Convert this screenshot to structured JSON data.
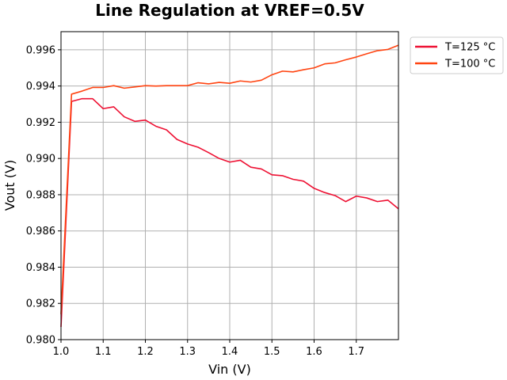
{
  "chart_data": {
    "type": "line",
    "title": "Line Regulation at VREF=0.5V",
    "xlabel": "Vin (V)",
    "ylabel": "Vout (V)",
    "xlim": [
      1.0,
      1.8
    ],
    "ylim": [
      0.98,
      0.997
    ],
    "xticks": [
      1.0,
      1.1,
      1.2,
      1.3,
      1.4,
      1.5,
      1.6,
      1.7
    ],
    "xtick_labels": [
      "1.0",
      "1.1",
      "1.2",
      "1.3",
      "1.4",
      "1.5",
      "1.6",
      "1.7"
    ],
    "yticks": [
      0.98,
      0.982,
      0.984,
      0.986,
      0.988,
      0.99,
      0.992,
      0.994,
      0.996
    ],
    "ytick_labels": [
      "0.980",
      "0.982",
      "0.984",
      "0.986",
      "0.988",
      "0.990",
      "0.992",
      "0.994",
      "0.996"
    ],
    "grid": true,
    "legend_position": "outside-top-right",
    "x": [
      1.0,
      1.025,
      1.05,
      1.075,
      1.1,
      1.125,
      1.15,
      1.175,
      1.2,
      1.225,
      1.25,
      1.275,
      1.3,
      1.325,
      1.35,
      1.375,
      1.4,
      1.425,
      1.45,
      1.475,
      1.5,
      1.525,
      1.55,
      1.575,
      1.6,
      1.625,
      1.65,
      1.675,
      1.7,
      1.725,
      1.75,
      1.775,
      1.8
    ],
    "series": [
      {
        "name": "T=125 °C",
        "color": "#ee1133",
        "values": [
          0.9807,
          0.99315,
          0.9933,
          0.9933,
          0.99275,
          0.99285,
          0.9923,
          0.99205,
          0.99212,
          0.99178,
          0.99158,
          0.99105,
          0.9908,
          0.99062,
          0.99032,
          0.99,
          0.9898,
          0.9899,
          0.98952,
          0.98942,
          0.9891,
          0.98905,
          0.98885,
          0.98875,
          0.98835,
          0.98812,
          0.98795,
          0.98762,
          0.98792,
          0.98782,
          0.98762,
          0.9877,
          0.98722
        ]
      },
      {
        "name": "T=100 °C",
        "color": "#ff4411",
        "values": [
          0.9814,
          0.99355,
          0.99372,
          0.99392,
          0.99392,
          0.99402,
          0.99388,
          0.99395,
          0.99402,
          0.994,
          0.99402,
          0.99402,
          0.99402,
          0.99418,
          0.99412,
          0.9942,
          0.99415,
          0.99428,
          0.99422,
          0.99432,
          0.99462,
          0.99482,
          0.99478,
          0.9949,
          0.995,
          0.99522,
          0.99528,
          0.99545,
          0.9956,
          0.99578,
          0.99595,
          0.99602,
          0.99625
        ]
      }
    ]
  }
}
